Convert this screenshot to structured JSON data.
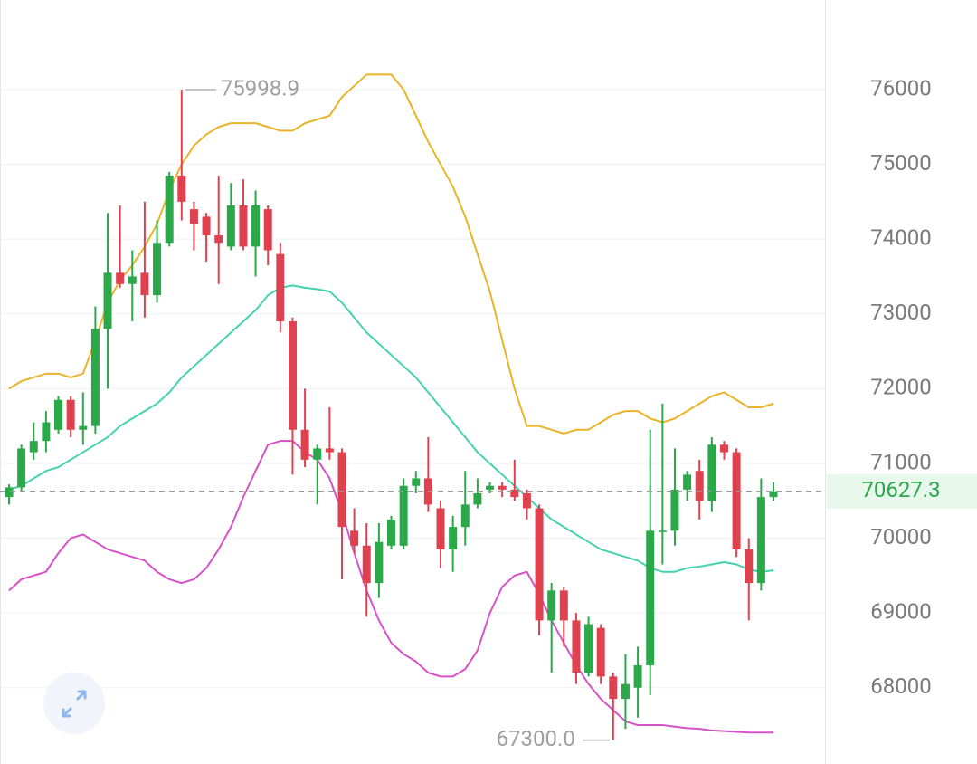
{
  "chart_data": {
    "type": "candlestick",
    "up_color": "#2aa84a",
    "down_color": "#e0414f",
    "ylim": [
      66980,
      77198
    ],
    "yticks": [
      68000,
      69000,
      70000,
      71000,
      72000,
      73000,
      74000,
      75000,
      76000
    ],
    "grid": true,
    "open": [
      70550,
      70680,
      71150,
      71300,
      71450,
      71850,
      71450,
      71500,
      72800,
      73550,
      73400,
      73550,
      73250,
      73950,
      74850,
      74400,
      74300,
      74050,
      73900,
      74450,
      73900,
      74400,
      73800,
      72900,
      71450,
      71050,
      71200,
      71150,
      70100,
      69900,
      69400,
      69900,
      69900,
      70700,
      70800,
      70400,
      69850,
      70150,
      70450,
      70650,
      70700,
      70650,
      70600,
      70400,
      68900,
      69300,
      68900,
      68200,
      68800,
      68150,
      67850,
      68000,
      68300,
      70100,
      70100,
      70650,
      70900,
      70500,
      71250,
      71150,
      69850,
      69400,
      70550
    ],
    "high": [
      70720,
      71250,
      71550,
      71700,
      71900,
      71900,
      71950,
      73100,
      74350,
      74450,
      73850,
      74500,
      74250,
      74900,
      75998.9,
      74500,
      74350,
      74850,
      74750,
      74800,
      74650,
      74450,
      73950,
      72950,
      72000,
      71250,
      71750,
      71200,
      70400,
      70200,
      70200,
      70300,
      70800,
      70900,
      71350,
      70500,
      70300,
      70900,
      70800,
      70750,
      70750,
      71050,
      70650,
      70450,
      69400,
      69350,
      69000,
      68950,
      68850,
      68200,
      68450,
      68550,
      71450,
      71800,
      71200,
      70900,
      71050,
      71350,
      71300,
      71200,
      70000,
      70800,
      70750
    ],
    "low": [
      70450,
      70620,
      71050,
      71150,
      71400,
      71350,
      71250,
      71400,
      72000,
      73350,
      72900,
      72950,
      73150,
      73900,
      74250,
      73850,
      73700,
      73400,
      73850,
      73850,
      73500,
      73650,
      72750,
      70850,
      70950,
      70450,
      71050,
      69450,
      69800,
      68950,
      69200,
      69850,
      69850,
      70600,
      70350,
      69600,
      69550,
      69900,
      70400,
      70600,
      70550,
      70500,
      70250,
      68700,
      68200,
      68550,
      68050,
      68150,
      68050,
      67300,
      67450,
      67600,
      67900,
      69650,
      69900,
      70500,
      70250,
      70350,
      71050,
      69750,
      68900,
      69300,
      70500
    ],
    "close": [
      70680,
      71200,
      71300,
      71550,
      71850,
      71450,
      71500,
      72800,
      73550,
      73400,
      73500,
      73250,
      73950,
      74850,
      74500,
      74200,
      74050,
      73950,
      74450,
      73900,
      74450,
      73850,
      72900,
      71450,
      71050,
      71200,
      71150,
      70150,
      69900,
      69400,
      69950,
      70250,
      70700,
      70800,
      70450,
      69850,
      70150,
      70450,
      70600,
      70700,
      70650,
      70550,
      70400,
      68900,
      69300,
      68900,
      68200,
      68850,
      68150,
      67850,
      68050,
      68300,
      70100,
      70100,
      70650,
      70850,
      70500,
      71250,
      71150,
      69850,
      69400,
      70550,
      70627.3
    ],
    "upper_band": {
      "color": "#eab42a",
      "values": [
        72000,
        72100,
        72150,
        72200,
        72200,
        72150,
        72200,
        72650,
        73150,
        73450,
        73650,
        73900,
        74200,
        74650,
        75000,
        75250,
        75400,
        75500,
        75550,
        75550,
        75550,
        75500,
        75450,
        75450,
        75550,
        75600,
        75650,
        75900,
        76050,
        76200,
        76200,
        76200,
        76000,
        75650,
        75300,
        75000,
        74700,
        74300,
        73800,
        73300,
        72650,
        72000,
        71500,
        71500,
        71450,
        71400,
        71450,
        71450,
        71550,
        71650,
        71700,
        71700,
        71600,
        71550,
        71600,
        71700,
        71800,
        71900,
        71950,
        71850,
        71750,
        71750,
        71800
      ]
    },
    "middle_band": {
      "color": "#44d3ae",
      "values": [
        70650,
        70700,
        70800,
        70900,
        70950,
        71050,
        71150,
        71250,
        71350,
        71500,
        71600,
        71700,
        71800,
        71950,
        72150,
        72300,
        72450,
        72600,
        72750,
        72900,
        73050,
        73250,
        73350,
        73380,
        73350,
        73330,
        73300,
        73150,
        72950,
        72750,
        72600,
        72450,
        72300,
        72150,
        71950,
        71750,
        71550,
        71350,
        71150,
        71000,
        70850,
        70700,
        70550,
        70400,
        70250,
        70150,
        70050,
        69950,
        69850,
        69800,
        69750,
        69700,
        69600,
        69550,
        69550,
        69600,
        69620,
        69650,
        69680,
        69650,
        69580,
        69550,
        69570
      ]
    },
    "lower_band": {
      "color": "#d652c6",
      "values": [
        69300,
        69450,
        69500,
        69550,
        69800,
        70000,
        70050,
        69950,
        69850,
        69800,
        69750,
        69700,
        69550,
        69450,
        69400,
        69450,
        69600,
        69850,
        70150,
        70550,
        70900,
        71250,
        71300,
        71300,
        71150,
        71050,
        70800,
        70350,
        69800,
        69300,
        68900,
        68600,
        68450,
        68350,
        68200,
        68150,
        68150,
        68250,
        68500,
        69000,
        69350,
        69500,
        69550,
        69250,
        68900,
        68600,
        68300,
        68050,
        67850,
        67700,
        67550,
        67500,
        67500,
        67500,
        67480,
        67460,
        67450,
        67430,
        67420,
        67410,
        67400,
        67400,
        67400
      ]
    },
    "last_price": 70627.3,
    "high_annotation": 75998.9,
    "low_annotation": {
      "value": 67300,
      "label": "67300.0"
    }
  }
}
